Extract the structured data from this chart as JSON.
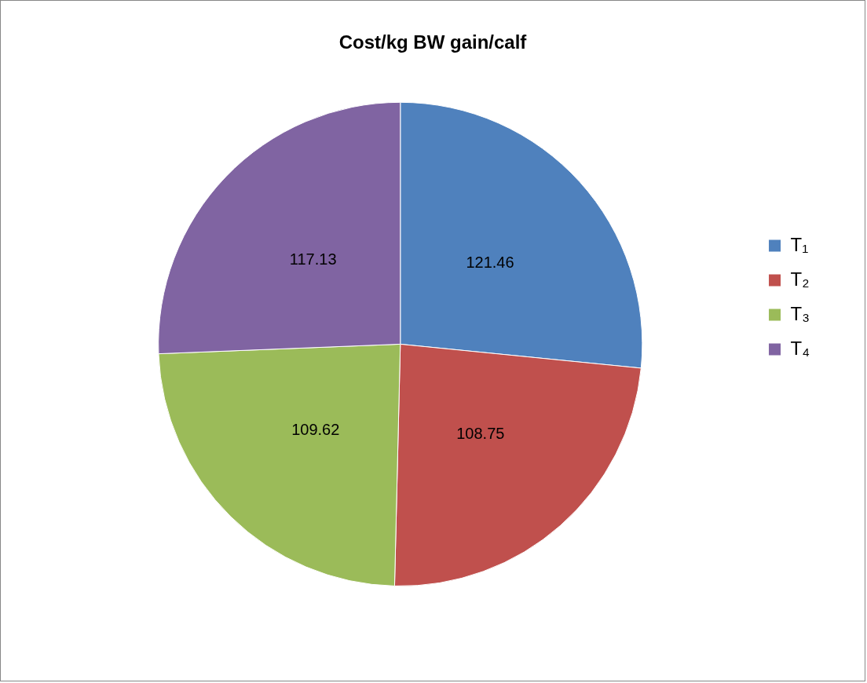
{
  "chart_data": {
    "type": "pie",
    "title": "Cost/kg BW gain/calf",
    "categories": [
      "T₁",
      "T₂",
      "T₃",
      "T₄"
    ],
    "values": [
      121.46,
      108.75,
      109.62,
      117.13
    ],
    "colors": [
      "#4f81bd",
      "#c0504d",
      "#9bbb59",
      "#8064a2"
    ],
    "data_labels": true,
    "legend": "right"
  }
}
